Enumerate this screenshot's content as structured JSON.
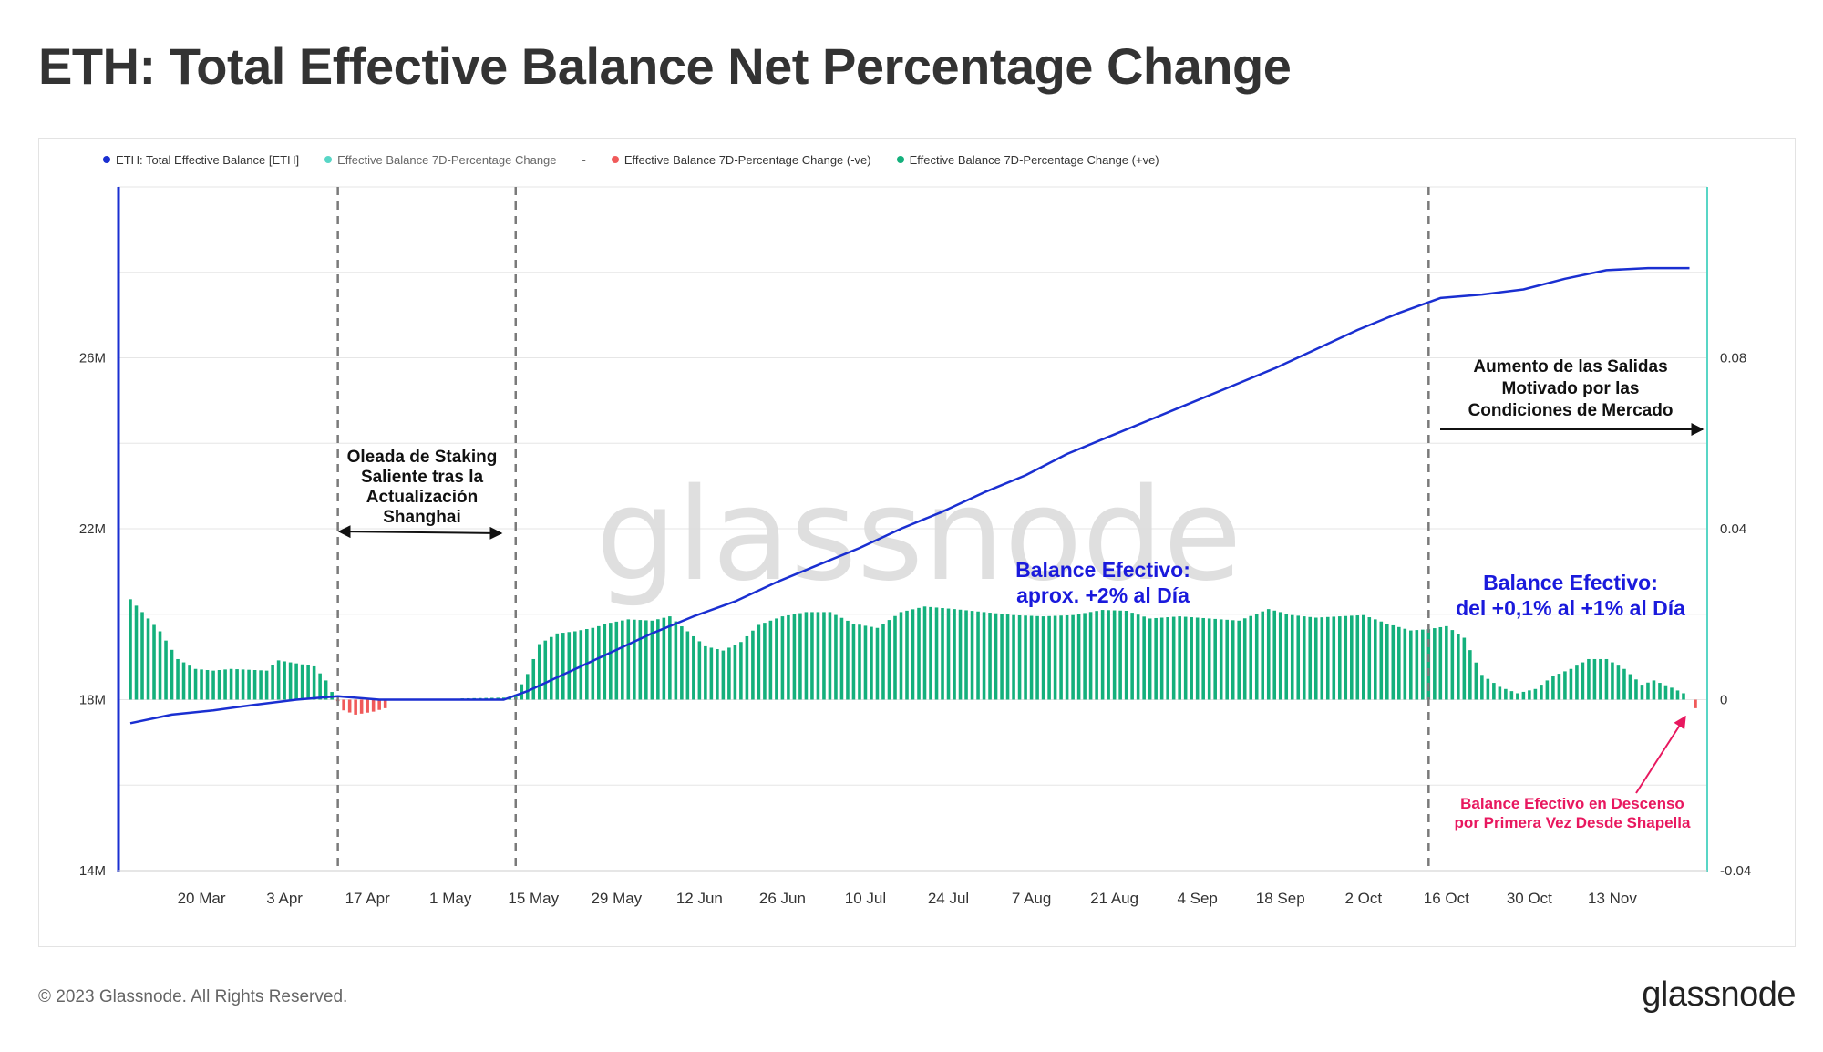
{
  "header": {
    "title": "ETH: Total Effective Balance Net Percentage Change"
  },
  "footer": {
    "copyright": "© 2023 Glassnode. All Rights Reserved.",
    "logo": "glassnode"
  },
  "watermark": "glassnode",
  "colors": {
    "balance_line": "#1a2fd1",
    "positive": "#14b07c",
    "negative": "#f05a5a",
    "right_axis": "#58d6c6",
    "grid": "#e6e6e6"
  },
  "legend": [
    {
      "label": "ETH: Total Effective Balance [ETH]",
      "color": "#1a2fd1",
      "struck": false
    },
    {
      "label": "Effective Balance 7D-Percentage Change",
      "color": "#58d6c6",
      "struck": true
    },
    {
      "label": "-",
      "color": "",
      "struck": false
    },
    {
      "label": "Effective Balance 7D-Percentage Change (-ve)",
      "color": "#f05a5a",
      "struck": false
    },
    {
      "label": "Effective Balance 7D-Percentage Change (+ve)",
      "color": "#14b07c",
      "struck": false
    }
  ],
  "annotations": {
    "shanghai": [
      "Oleada de Staking",
      "Saliente tras la",
      "Actualización",
      "Shanghai"
    ],
    "salidas": [
      "Aumento de las Salidas",
      "Motivado por las",
      "Condiciones de Mercado"
    ],
    "balance_2pct": [
      "Balance Efectivo:",
      "aprox. +2% al Día"
    ],
    "balance_01pct": [
      "Balance Efectivo:",
      "del +0,1% al +1% al Día"
    ],
    "descenso": [
      "Balance Efectivo en Descenso",
      "por Primera Vez Desde Shapella"
    ]
  },
  "chart_data": {
    "type": "line+bar",
    "title": "ETH: Total Effective Balance Net Percentage Change",
    "x_tick_labels": [
      "20 Mar",
      "3 Apr",
      "17 Apr",
      "1 May",
      "15 May",
      "29 May",
      "12 Jun",
      "26 Jun",
      "10 Jul",
      "24 Jul",
      "7 Aug",
      "21 Aug",
      "4 Sep",
      "18 Sep",
      "2 Oct",
      "16 Oct",
      "30 Oct",
      "13 Nov"
    ],
    "x_tick_dates": [
      "2023-03-20",
      "2023-04-03",
      "2023-04-17",
      "2023-05-01",
      "2023-05-15",
      "2023-05-29",
      "2023-06-12",
      "2023-06-26",
      "2023-07-10",
      "2023-07-24",
      "2023-08-07",
      "2023-08-21",
      "2023-09-04",
      "2023-09-18",
      "2023-10-02",
      "2023-10-16",
      "2023-10-30",
      "2023-11-13"
    ],
    "xlim": [
      "2023-03-06",
      "2023-11-29"
    ],
    "left_axis": {
      "ticks": [
        14,
        18,
        22,
        26
      ],
      "tick_labels": [
        "14M",
        "18M",
        "22M",
        "26M"
      ],
      "ylim": [
        14,
        30
      ],
      "unit": "M ETH"
    },
    "right_axis": {
      "ticks": [
        -0.04,
        0,
        0.04,
        0.08
      ],
      "tick_labels": [
        "-0.04",
        "0",
        "0.04",
        "0.08"
      ],
      "ylim": [
        -0.04,
        0.12
      ]
    },
    "grid": true,
    "legend_position": "top-left",
    "event_lines": [
      "2023-04-12",
      "2023-05-12",
      "2023-10-13"
    ],
    "balance_series": {
      "name": "ETH: Total Effective Balance [ETH]",
      "points": [
        [
          "2023-03-08",
          17.45
        ],
        [
          "2023-03-15",
          17.65
        ],
        [
          "2023-03-22",
          17.75
        ],
        [
          "2023-03-29",
          17.88
        ],
        [
          "2023-04-05",
          18.0
        ],
        [
          "2023-04-12",
          18.08
        ],
        [
          "2023-04-19",
          18.0
        ],
        [
          "2023-04-26",
          18.0
        ],
        [
          "2023-05-03",
          18.0
        ],
        [
          "2023-05-10",
          18.0
        ],
        [
          "2023-05-14",
          18.2
        ],
        [
          "2023-05-21",
          18.65
        ],
        [
          "2023-05-28",
          19.1
        ],
        [
          "2023-06-04",
          19.55
        ],
        [
          "2023-06-11",
          19.95
        ],
        [
          "2023-06-18",
          20.3
        ],
        [
          "2023-06-25",
          20.75
        ],
        [
          "2023-07-02",
          21.15
        ],
        [
          "2023-07-09",
          21.55
        ],
        [
          "2023-07-16",
          22.0
        ],
        [
          "2023-07-23",
          22.4
        ],
        [
          "2023-07-30",
          22.85
        ],
        [
          "2023-08-06",
          23.25
        ],
        [
          "2023-08-13",
          23.75
        ],
        [
          "2023-08-20",
          24.15
        ],
        [
          "2023-08-27",
          24.55
        ],
        [
          "2023-09-03",
          24.95
        ],
        [
          "2023-09-10",
          25.35
        ],
        [
          "2023-09-17",
          25.75
        ],
        [
          "2023-09-24",
          26.2
        ],
        [
          "2023-10-01",
          26.65
        ],
        [
          "2023-10-08",
          27.05
        ],
        [
          "2023-10-15",
          27.4
        ],
        [
          "2023-10-22",
          27.48
        ],
        [
          "2023-10-29",
          27.6
        ],
        [
          "2023-11-05",
          27.85
        ],
        [
          "2023-11-12",
          28.05
        ],
        [
          "2023-11-19",
          28.1
        ],
        [
          "2023-11-26",
          28.1
        ]
      ]
    },
    "pct_change_series": {
      "name": "Effective Balance 7D-Percentage Change",
      "points": [
        [
          "2023-03-08",
          0.0235
        ],
        [
          "2023-03-10",
          0.0205
        ],
        [
          "2023-03-13",
          0.016
        ],
        [
          "2023-03-16",
          0.0095
        ],
        [
          "2023-03-19",
          0.0072
        ],
        [
          "2023-03-22",
          0.0068
        ],
        [
          "2023-03-25",
          0.0072
        ],
        [
          "2023-03-28",
          0.007
        ],
        [
          "2023-03-31",
          0.0068
        ],
        [
          "2023-04-02",
          0.0092
        ],
        [
          "2023-04-05",
          0.0085
        ],
        [
          "2023-04-08",
          0.0078
        ],
        [
          "2023-04-10",
          0.0045
        ],
        [
          "2023-04-11",
          0.0018
        ],
        [
          "2023-04-13",
          -0.0025
        ],
        [
          "2023-04-15",
          -0.0035
        ],
        [
          "2023-04-18",
          -0.0028
        ],
        [
          "2023-04-20",
          -0.002
        ],
        [
          "2023-04-21",
          0
        ],
        [
          "2023-05-11",
          0.0005
        ],
        [
          "2023-05-12",
          0.0012
        ],
        [
          "2023-05-14",
          0.006
        ],
        [
          "2023-05-16",
          0.013
        ],
        [
          "2023-05-19",
          0.0155
        ],
        [
          "2023-05-22",
          0.016
        ],
        [
          "2023-05-25",
          0.0168
        ],
        [
          "2023-05-28",
          0.018
        ],
        [
          "2023-05-31",
          0.0188
        ],
        [
          "2023-06-04",
          0.0185
        ],
        [
          "2023-06-07",
          0.0195
        ],
        [
          "2023-06-10",
          0.016
        ],
        [
          "2023-06-13",
          0.0125
        ],
        [
          "2023-06-16",
          0.0115
        ],
        [
          "2023-06-19",
          0.0135
        ],
        [
          "2023-06-22",
          0.0175
        ],
        [
          "2023-06-26",
          0.0195
        ],
        [
          "2023-06-30",
          0.0205
        ],
        [
          "2023-07-04",
          0.0205
        ],
        [
          "2023-07-08",
          0.0178
        ],
        [
          "2023-07-12",
          0.0168
        ],
        [
          "2023-07-16",
          0.0205
        ],
        [
          "2023-07-20",
          0.0218
        ],
        [
          "2023-07-25",
          0.0212
        ],
        [
          "2023-07-30",
          0.0205
        ],
        [
          "2023-08-04",
          0.0198
        ],
        [
          "2023-08-09",
          0.0195
        ],
        [
          "2023-08-14",
          0.0198
        ],
        [
          "2023-08-19",
          0.021
        ],
        [
          "2023-08-23",
          0.0208
        ],
        [
          "2023-08-27",
          0.019
        ],
        [
          "2023-09-01",
          0.0195
        ],
        [
          "2023-09-06",
          0.019
        ],
        [
          "2023-09-11",
          0.0185
        ],
        [
          "2023-09-16",
          0.0212
        ],
        [
          "2023-09-20",
          0.0198
        ],
        [
          "2023-09-24",
          0.0192
        ],
        [
          "2023-09-28",
          0.0195
        ],
        [
          "2023-10-02",
          0.0198
        ],
        [
          "2023-10-06",
          0.0178
        ],
        [
          "2023-10-10",
          0.0162
        ],
        [
          "2023-10-13",
          0.0165
        ],
        [
          "2023-10-16",
          0.0172
        ],
        [
          "2023-10-19",
          0.0145
        ],
        [
          "2023-10-22",
          0.0058
        ],
        [
          "2023-10-25",
          0.003
        ],
        [
          "2023-10-28",
          0.0015
        ],
        [
          "2023-10-31",
          0.0025
        ],
        [
          "2023-11-03",
          0.0055
        ],
        [
          "2023-11-06",
          0.0072
        ],
        [
          "2023-11-09",
          0.0095
        ],
        [
          "2023-11-12",
          0.0095
        ],
        [
          "2023-11-15",
          0.0072
        ],
        [
          "2023-11-18",
          0.0035
        ],
        [
          "2023-11-20",
          0.0045
        ],
        [
          "2023-11-23",
          0.0028
        ],
        [
          "2023-11-25",
          0.0015
        ],
        [
          "2023-11-27",
          -0.002
        ]
      ]
    }
  }
}
